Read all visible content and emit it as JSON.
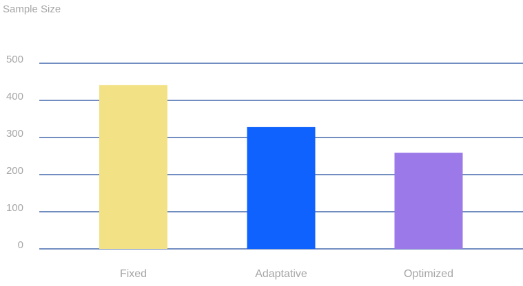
{
  "chart_data": {
    "type": "bar",
    "ylabel": "Sample Size",
    "xlabel": "",
    "categories": [
      "Fixed",
      "Adaptative",
      "Optimized"
    ],
    "values": [
      441,
      328,
      259
    ],
    "ylim": [
      0,
      500
    ],
    "yticks": [
      0,
      100,
      200,
      300,
      400,
      500
    ],
    "grid": true,
    "legend": "none",
    "colors": {
      "bars": [
        "#f2e285",
        "#0f62fe",
        "#9b79e8"
      ],
      "grid": "#1f4a9c",
      "text": "#a6a6a6"
    }
  }
}
